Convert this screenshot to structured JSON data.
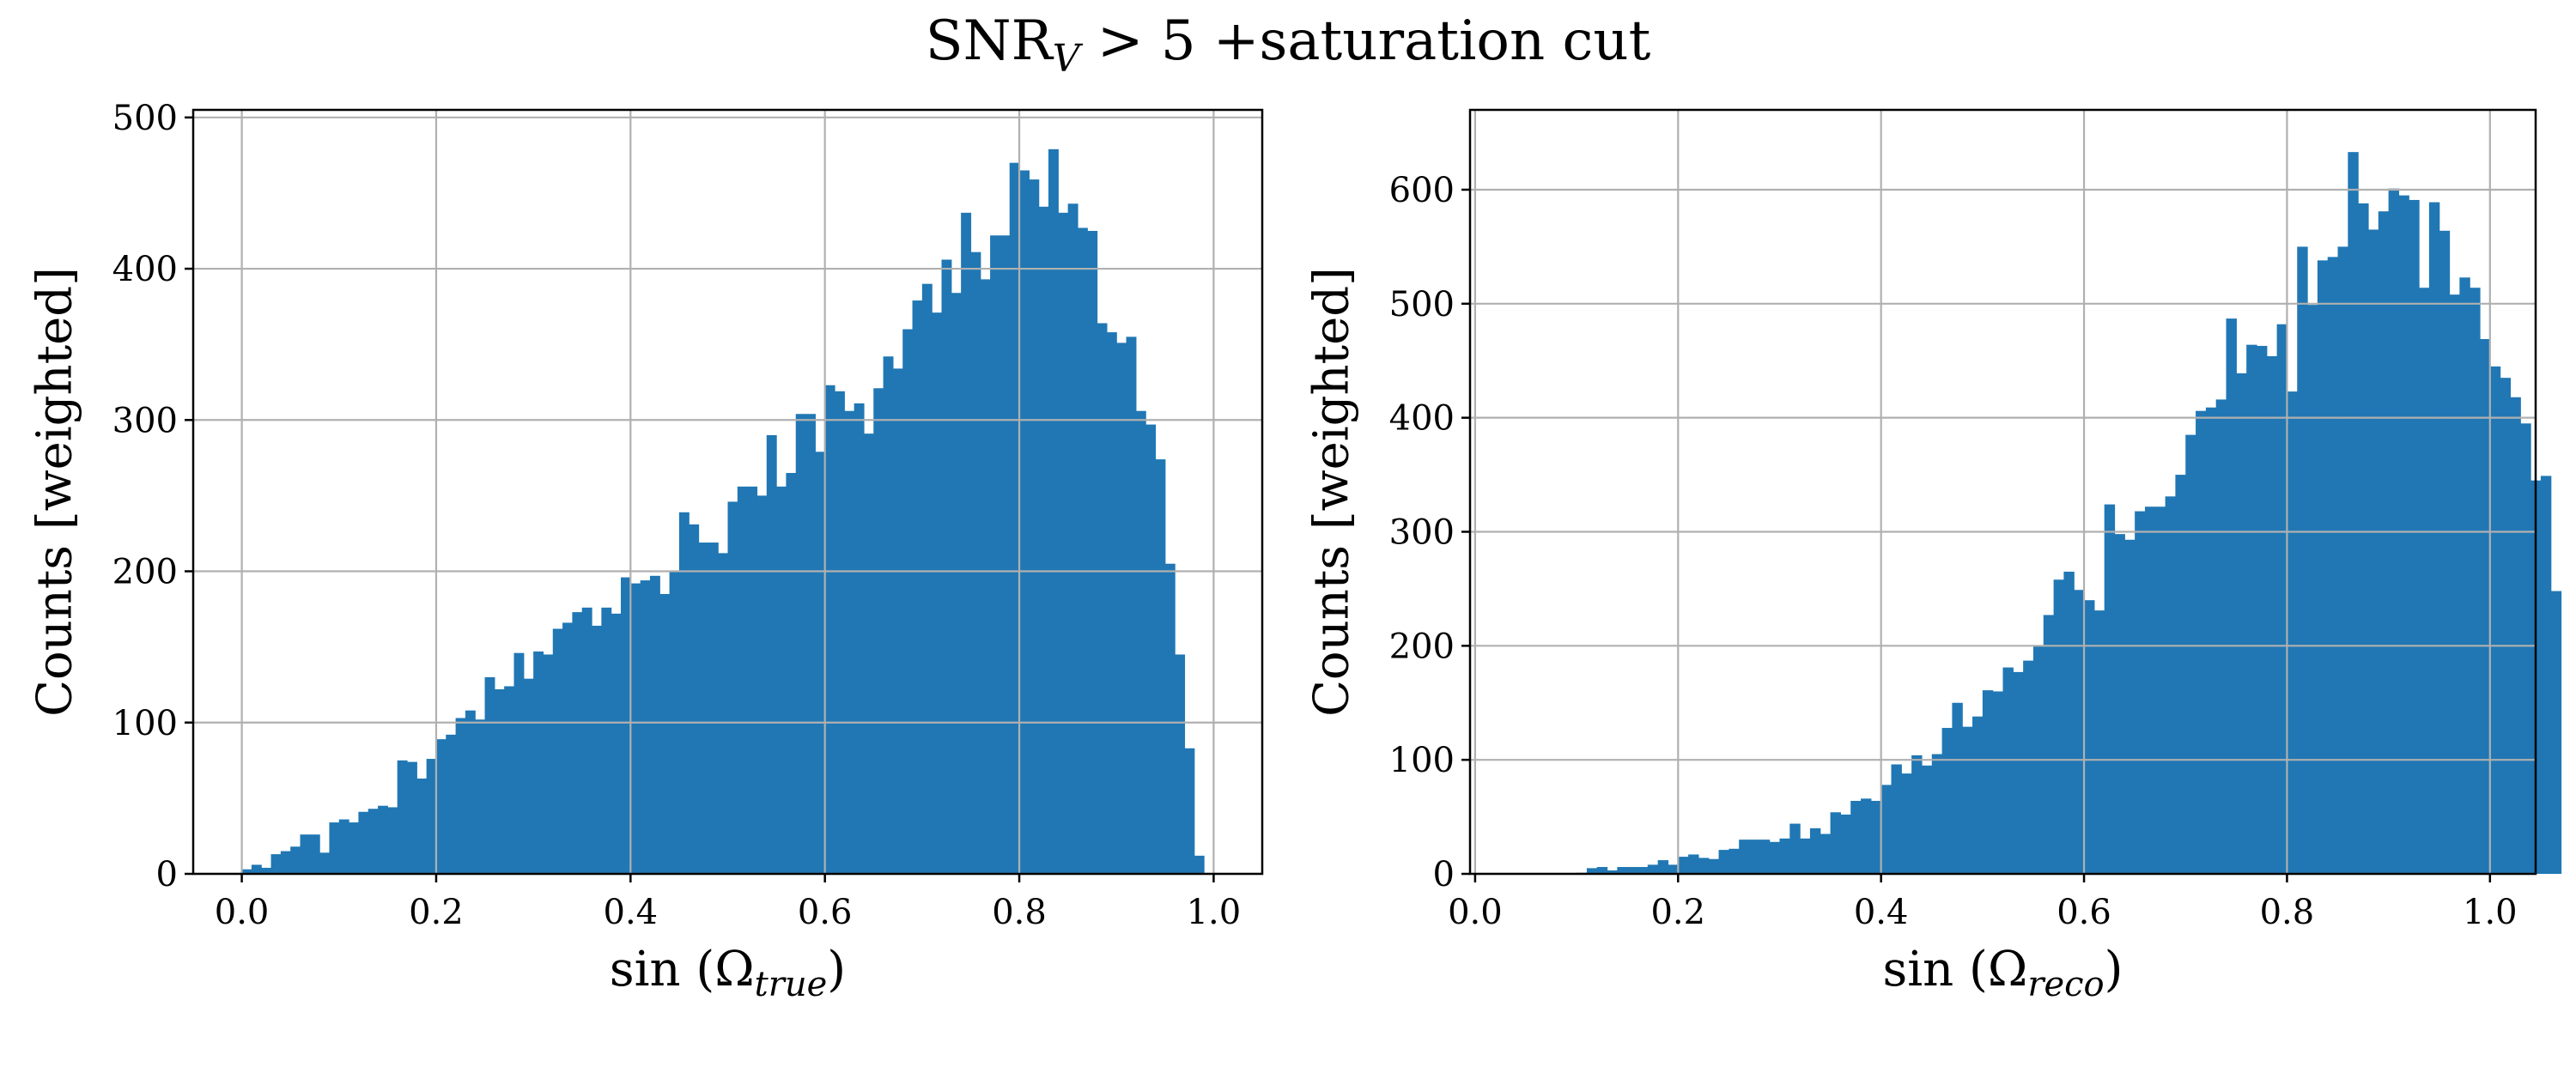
{
  "figure": {
    "title_main": "SNR",
    "title_sub": "V",
    "title_rest": " > 5 +saturation cut"
  },
  "chart_data": [
    {
      "type": "bar",
      "id": "true",
      "ylabel": "Counts [weighted]",
      "xlabel_main": "sin (Ω",
      "xlabel_sub": "true",
      "xlabel_end": ")",
      "xlim": [
        -0.05,
        1.05
      ],
      "ylim": [
        0,
        505
      ],
      "xticks": [
        0.0,
        0.2,
        0.4,
        0.6,
        0.8,
        1.0
      ],
      "xtick_labels": [
        "0.0",
        "0.2",
        "0.4",
        "0.6",
        "0.8",
        "1.0"
      ],
      "yticks": [
        0,
        100,
        200,
        300,
        400,
        500
      ],
      "ytick_labels": [
        "0",
        "100",
        "200",
        "300",
        "400",
        "500"
      ],
      "grid": true,
      "bin_start": 0.0,
      "bin_width": 0.01,
      "color": "#2077b4",
      "values": [
        3,
        6,
        4,
        13,
        15,
        18,
        26,
        26,
        14,
        34,
        36,
        34,
        41,
        43,
        45,
        44,
        75,
        74,
        63,
        76,
        89,
        92,
        103,
        108,
        102,
        130,
        122,
        124,
        146,
        129,
        147,
        145,
        162,
        166,
        173,
        176,
        164,
        176,
        172,
        196,
        192,
        194,
        197,
        185,
        200,
        239,
        231,
        219,
        219,
        212,
        246,
        256,
        256,
        250,
        290,
        256,
        265,
        304,
        304,
        279,
        323,
        319,
        306,
        311,
        291,
        321,
        342,
        334,
        360,
        379,
        390,
        371,
        406,
        384,
        437,
        411,
        393,
        422,
        422,
        470,
        465,
        459,
        441,
        479,
        437,
        443,
        427,
        425,
        364,
        358,
        351,
        355,
        306,
        297,
        274,
        205,
        145,
        83,
        12
      ]
    },
    {
      "type": "bar",
      "id": "reco",
      "ylabel": "Counts [weighted]",
      "xlabel_main": "sin (Ω",
      "xlabel_sub": "reco",
      "xlabel_end": ")",
      "xlim": [
        -0.005,
        1.045
      ],
      "ylim": [
        0,
        670
      ],
      "xticks": [
        0.0,
        0.2,
        0.4,
        0.6,
        0.8,
        1.0
      ],
      "xtick_labels": [
        "0.0",
        "0.2",
        "0.4",
        "0.6",
        "0.8",
        "1.0"
      ],
      "yticks": [
        0,
        100,
        200,
        300,
        400,
        500,
        600
      ],
      "ytick_labels": [
        "0",
        "100",
        "200",
        "300",
        "400",
        "500",
        "600"
      ],
      "grid": true,
      "bin_start": 0.1,
      "bin_width": 0.01,
      "color": "#2077b4",
      "values": [
        1,
        5,
        6,
        3,
        6,
        6,
        6,
        8,
        12,
        8,
        15,
        17,
        14,
        13,
        21,
        22,
        30,
        30,
        30,
        28,
        31,
        44,
        31,
        40,
        35,
        54,
        52,
        64,
        66,
        64,
        78,
        96,
        88,
        104,
        95,
        105,
        128,
        150,
        129,
        138,
        161,
        160,
        181,
        177,
        187,
        200,
        227,
        258,
        265,
        249,
        240,
        231,
        324,
        298,
        293,
        318,
        322,
        322,
        331,
        350,
        385,
        406,
        409,
        416,
        487,
        439,
        464,
        463,
        454,
        482,
        423,
        550,
        499,
        538,
        541,
        550,
        633,
        588,
        565,
        581,
        601,
        595,
        591,
        514,
        589,
        564,
        508,
        523,
        514,
        469,
        445,
        435,
        418,
        395,
        345,
        349,
        248
      ]
    }
  ]
}
